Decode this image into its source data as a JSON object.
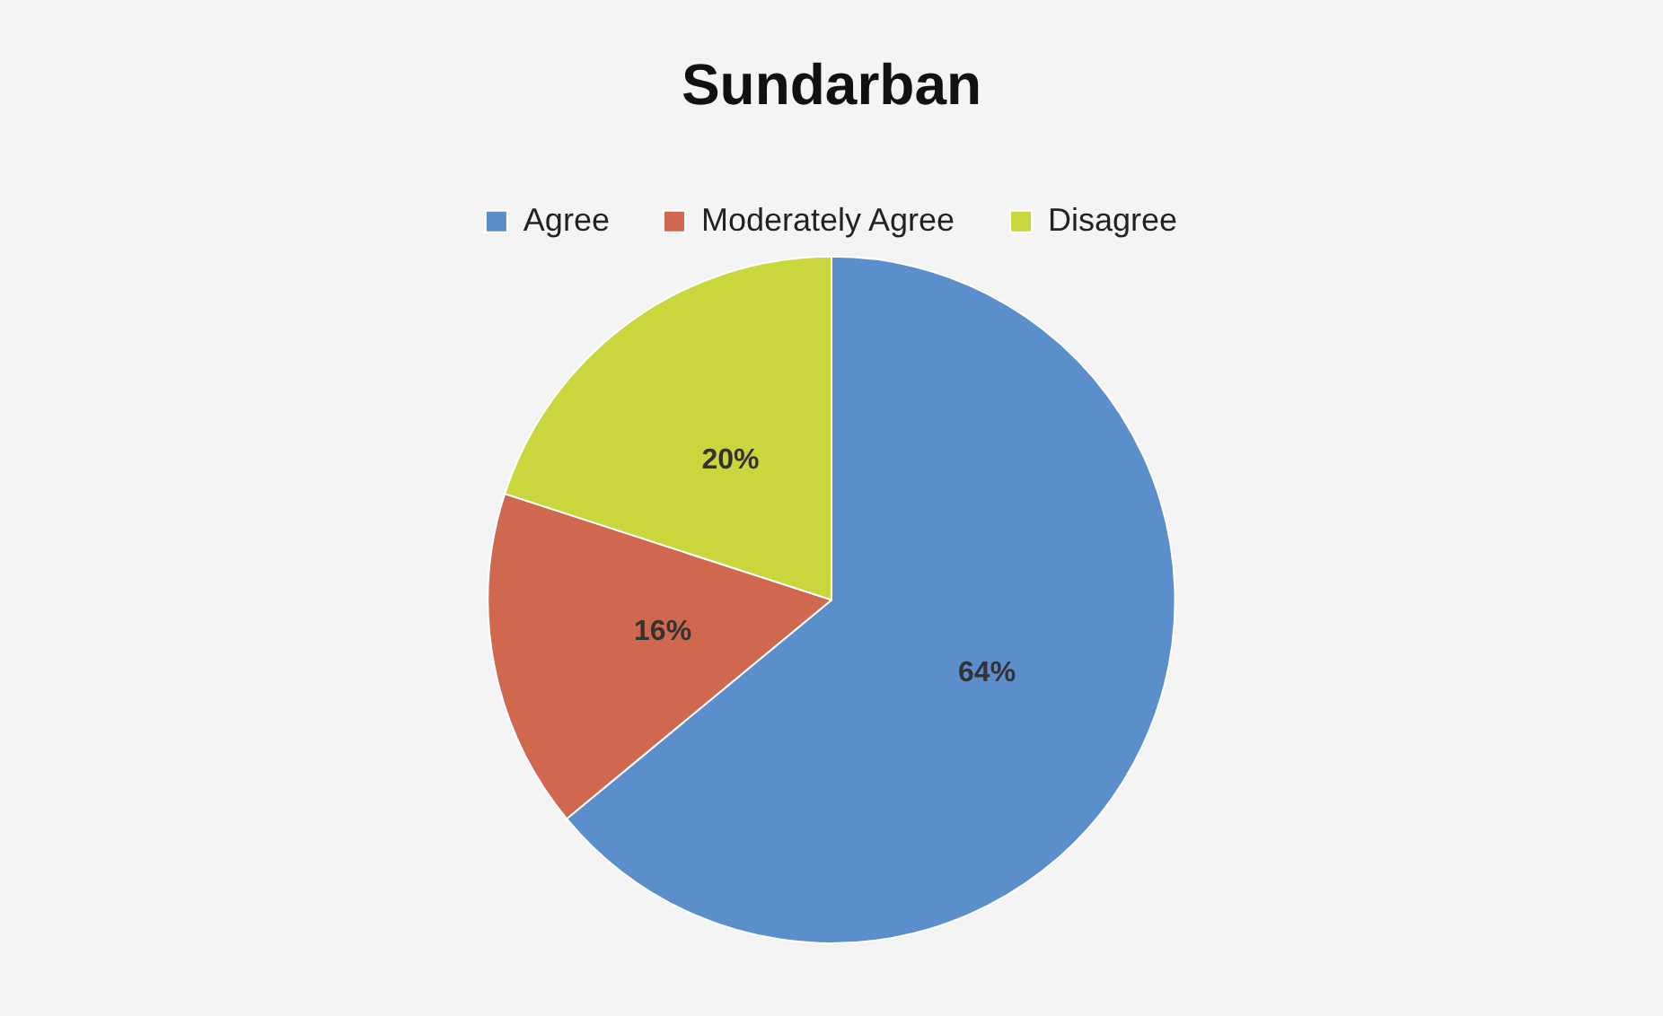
{
  "chart_data": {
    "type": "pie",
    "title": "Sundarban",
    "categories": [
      "Agree",
      "Moderately Agree",
      "Disagree"
    ],
    "values": [
      64,
      16,
      20
    ],
    "colors": [
      "#5b8fcb",
      "#d0674f",
      "#c9d63c"
    ],
    "value_labels": [
      "64%",
      "16%",
      "20%"
    ],
    "legend": "top"
  }
}
